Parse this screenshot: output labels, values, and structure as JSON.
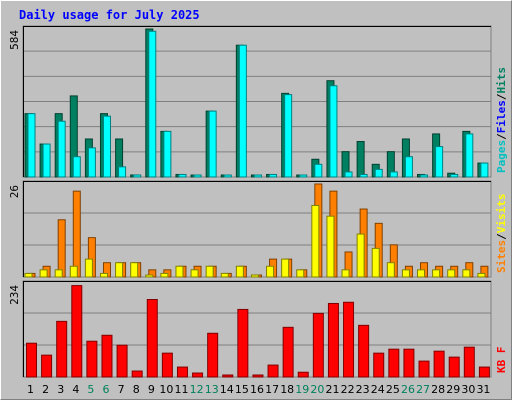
{
  "title": "Daily usage for July 2025",
  "colors": {
    "hits": "#00ffff",
    "files": "#0000ff",
    "pages": "#00c0c0",
    "visits": "#ffff00",
    "sites": "#ff8000",
    "kbytes": "#ff0000",
    "weekend": "#00805c",
    "weekday": "#000000",
    "panel": "#c0c0c0",
    "title": "#0000ff"
  },
  "chart_data": [
    {
      "type": "bar",
      "name": "hits-files-pages",
      "ymax_label": "584",
      "ylim": [
        0,
        584
      ],
      "legend": [
        "Pages",
        "Files",
        "Hits"
      ],
      "legend_sep": "/",
      "categories": [
        "1",
        "2",
        "3",
        "4",
        "5",
        "6",
        "7",
        "8",
        "9",
        "10",
        "11",
        "12",
        "13",
        "14",
        "15",
        "16",
        "17",
        "18",
        "19",
        "20",
        "21",
        "22",
        "23",
        "24",
        "25",
        "26",
        "27",
        "28",
        "29",
        "30",
        "31"
      ],
      "weekend_days": [
        "5",
        "6",
        "12",
        "13",
        "19",
        "20",
        "26",
        "27"
      ],
      "series": [
        {
          "name": "Hits",
          "values": [
            250,
            130,
            250,
            320,
            150,
            250,
            150,
            8,
            584,
            180,
            10,
            5,
            260,
            5,
            520,
            0,
            10,
            330,
            5,
            70,
            380,
            100,
            140,
            50,
            100,
            150,
            10,
            170,
            15,
            180,
            55
          ]
        },
        {
          "name": "Files",
          "values": [
            250,
            130,
            220,
            80,
            115,
            240,
            40,
            8,
            575,
            180,
            10,
            5,
            260,
            5,
            520,
            0,
            10,
            325,
            5,
            50,
            360,
            20,
            10,
            30,
            20,
            80,
            8,
            120,
            10,
            170,
            55
          ]
        },
        {
          "name": "Pages",
          "values": [
            0,
            0,
            0,
            0,
            0,
            0,
            0,
            0,
            0,
            0,
            0,
            0,
            0,
            0,
            0,
            0,
            0,
            0,
            0,
            0,
            0,
            0,
            0,
            0,
            0,
            0,
            0,
            0,
            0,
            0,
            0
          ]
        }
      ]
    },
    {
      "type": "bar",
      "name": "visits-sites",
      "ymax_label": "26",
      "ylim": [
        0,
        26
      ],
      "legend": [
        "Sites",
        "Visits"
      ],
      "legend_sep": "/",
      "categories": [
        "1",
        "2",
        "3",
        "4",
        "5",
        "6",
        "7",
        "8",
        "9",
        "10",
        "11",
        "12",
        "13",
        "14",
        "15",
        "16",
        "17",
        "18",
        "19",
        "20",
        "21",
        "22",
        "23",
        "24",
        "25",
        "26",
        "27",
        "28",
        "29",
        "30",
        "31"
      ],
      "series": [
        {
          "name": "Visits",
          "values": [
            1,
            2,
            2,
            3,
            5,
            1,
            4,
            4,
            0,
            1,
            3,
            2,
            3,
            1,
            3,
            0,
            3,
            5,
            2,
            20,
            17,
            2,
            12,
            8,
            4,
            2,
            2,
            2,
            2,
            2,
            1
          ]
        },
        {
          "name": "Sites",
          "values": [
            1,
            3,
            16,
            24,
            11,
            4,
            4,
            4,
            2,
            2,
            3,
            3,
            3,
            1,
            3,
            0,
            5,
            5,
            2,
            26,
            24,
            7,
            19,
            15,
            9,
            3,
            4,
            3,
            3,
            4,
            3
          ]
        }
      ]
    },
    {
      "type": "bar",
      "name": "kbytes",
      "ymax_label": "234",
      "ylim": [
        0,
        234
      ],
      "legend": [
        "KB F"
      ],
      "categories": [
        "1",
        "2",
        "3",
        "4",
        "5",
        "6",
        "7",
        "8",
        "9",
        "10",
        "11",
        "12",
        "13",
        "14",
        "15",
        "16",
        "17",
        "18",
        "19",
        "20",
        "21",
        "22",
        "23",
        "24",
        "25",
        "26",
        "27",
        "28",
        "29",
        "30",
        "31"
      ],
      "series": [
        {
          "name": "KB F",
          "values": [
            85,
            55,
            140,
            230,
            90,
            105,
            80,
            15,
            195,
            60,
            25,
            10,
            110,
            0,
            170,
            0,
            30,
            125,
            12,
            160,
            185,
            188,
            130,
            60,
            70,
            70,
            40,
            65,
            50,
            75,
            25
          ]
        }
      ]
    }
  ]
}
